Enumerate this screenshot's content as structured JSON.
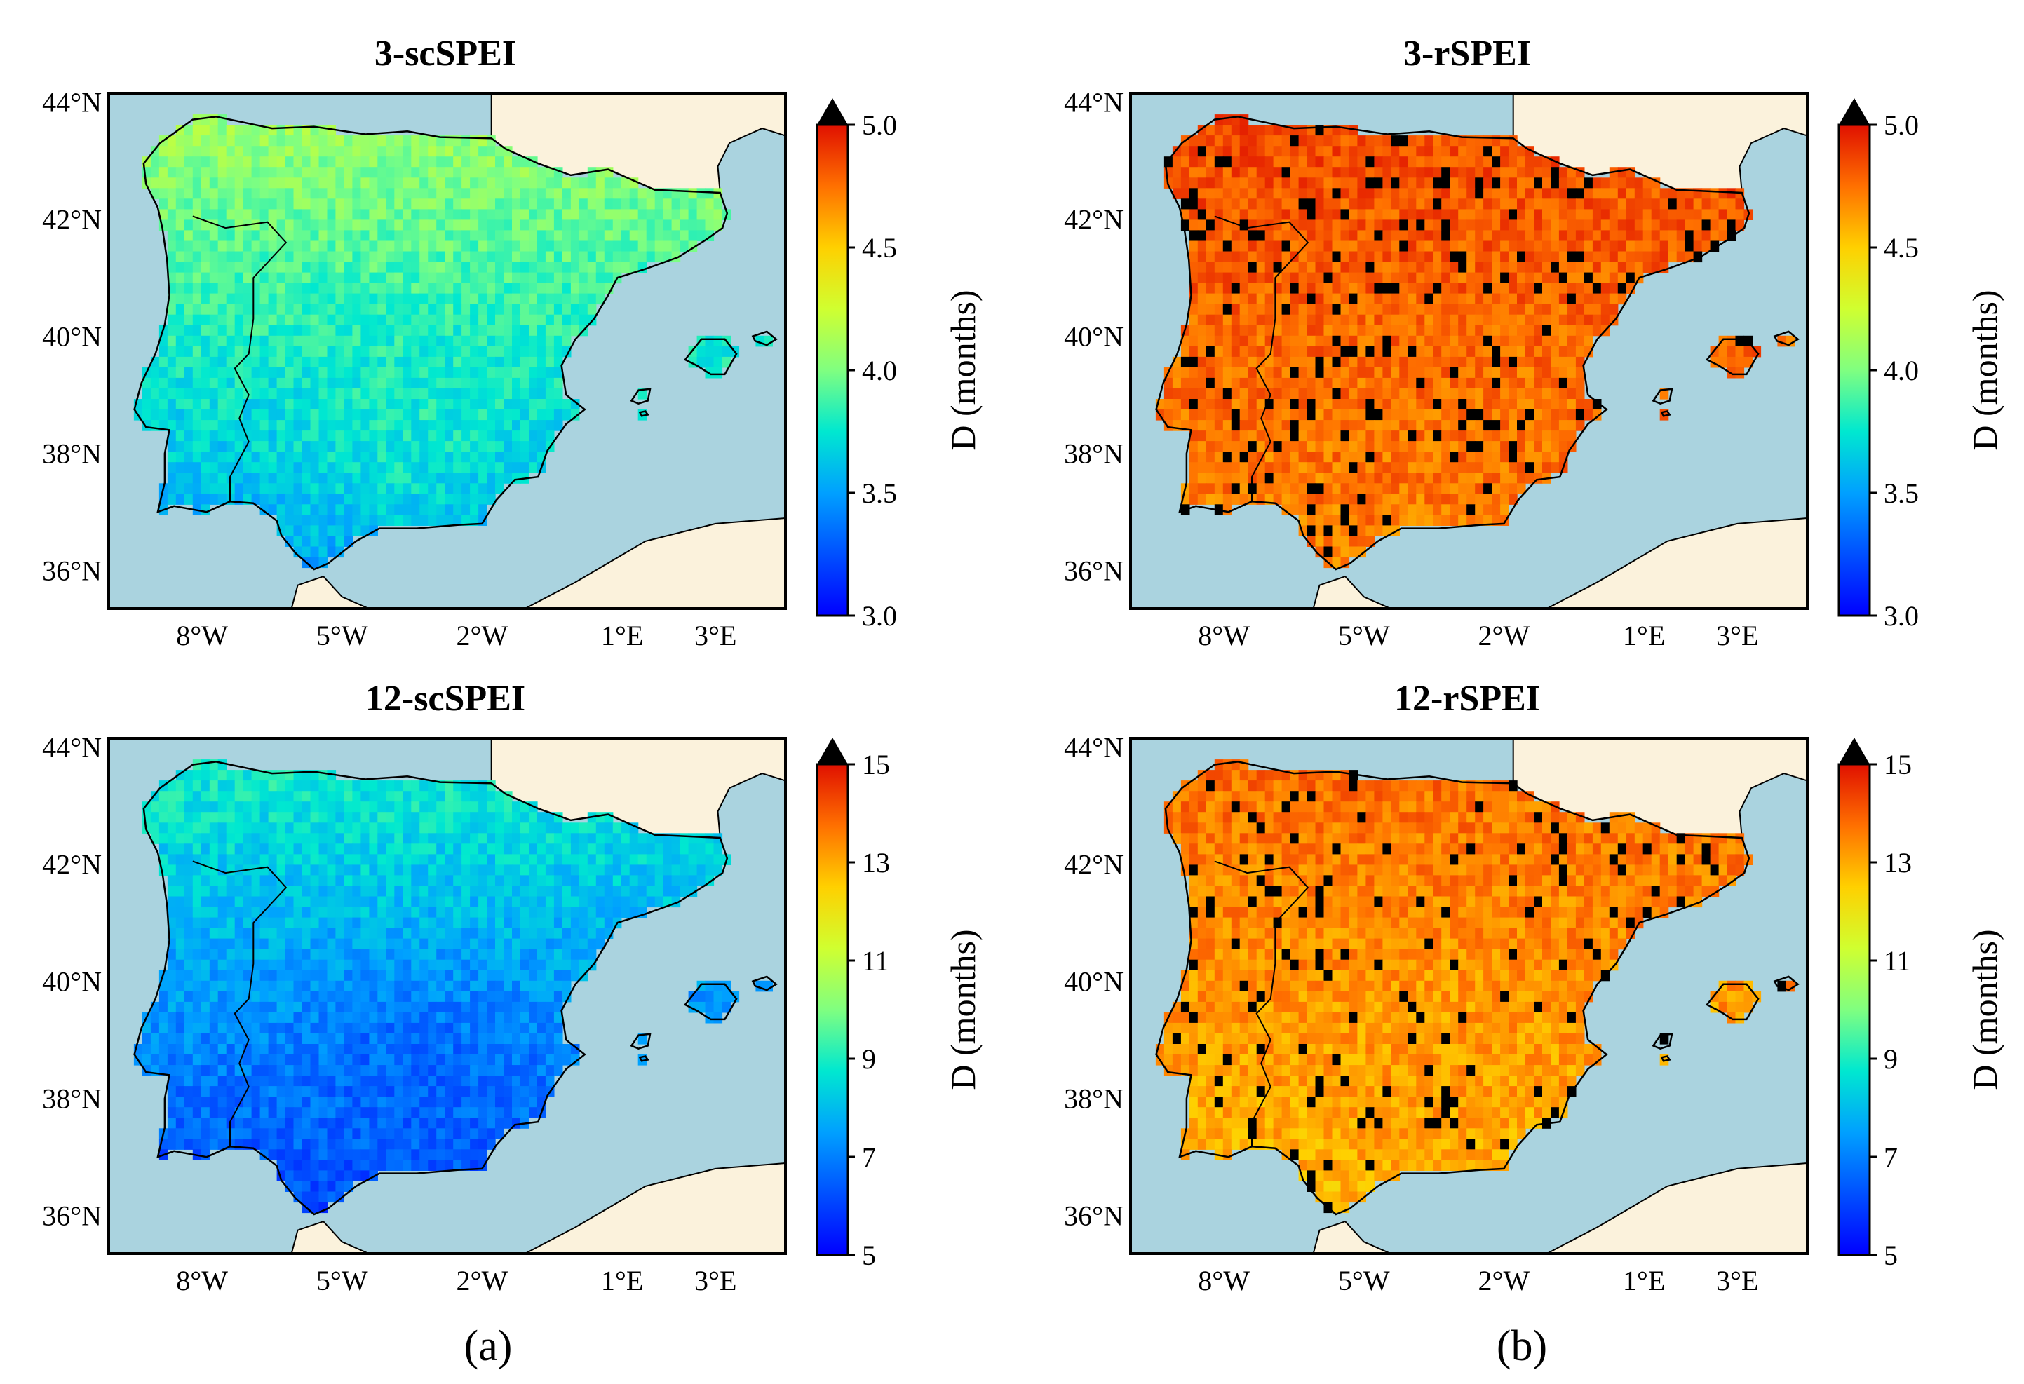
{
  "figure": {
    "panel_labels": [
      "(a)",
      "(b)"
    ],
    "colorbar_label": "D (months)",
    "lat_labels": [
      "44°N",
      "42°N",
      "40°N",
      "38°N",
      "36°N"
    ],
    "lon_labels": [
      "8°W",
      "5°W",
      "2°W",
      "1°E",
      "3°E"
    ],
    "colors": {
      "sea": "#aad3df",
      "foreign_land": "#fbf2dc",
      "boundary": "#000000",
      "over_range": "#000000"
    }
  },
  "maps": [
    {
      "id": "3-scSPEI",
      "title": "3-scSPEI",
      "colorbar": {
        "min": 3.0,
        "max": 5.0,
        "ticks": [
          "5.0",
          "4.5",
          "4.0",
          "3.5",
          "3.0"
        ]
      },
      "field": {
        "description_level": "mostly green-yellow in north, blue in south",
        "north": 4.1,
        "south": 3.5,
        "center": 3.8
      },
      "black_patch_share": 0.0
    },
    {
      "id": "3-rSPEI",
      "title": "3-rSPEI",
      "colorbar": {
        "min": 3.0,
        "max": 5.0,
        "ticks": [
          "5.0",
          "4.5",
          "4.0",
          "3.5",
          "3.0"
        ]
      },
      "field": {
        "north": 4.85,
        "south": 4.7,
        "center": 4.75
      },
      "black_patch_share": 0.08
    },
    {
      "id": "12-scSPEI",
      "title": "12-scSPEI",
      "colorbar": {
        "min": 5,
        "max": 15,
        "ticks": [
          "15",
          "13",
          "11",
          "9",
          "7",
          "5"
        ]
      },
      "field": {
        "north": 9.0,
        "south": 6.0,
        "center": 6.5
      },
      "black_patch_share": 0.0
    },
    {
      "id": "12-rSPEI",
      "title": "12-rSPEI",
      "colorbar": {
        "min": 5,
        "max": 15,
        "ticks": [
          "15",
          "13",
          "11",
          "9",
          "7",
          "5"
        ]
      },
      "field": {
        "north": 13.8,
        "south": 12.8,
        "center": 13.2
      },
      "black_patch_share": 0.07
    }
  ]
}
